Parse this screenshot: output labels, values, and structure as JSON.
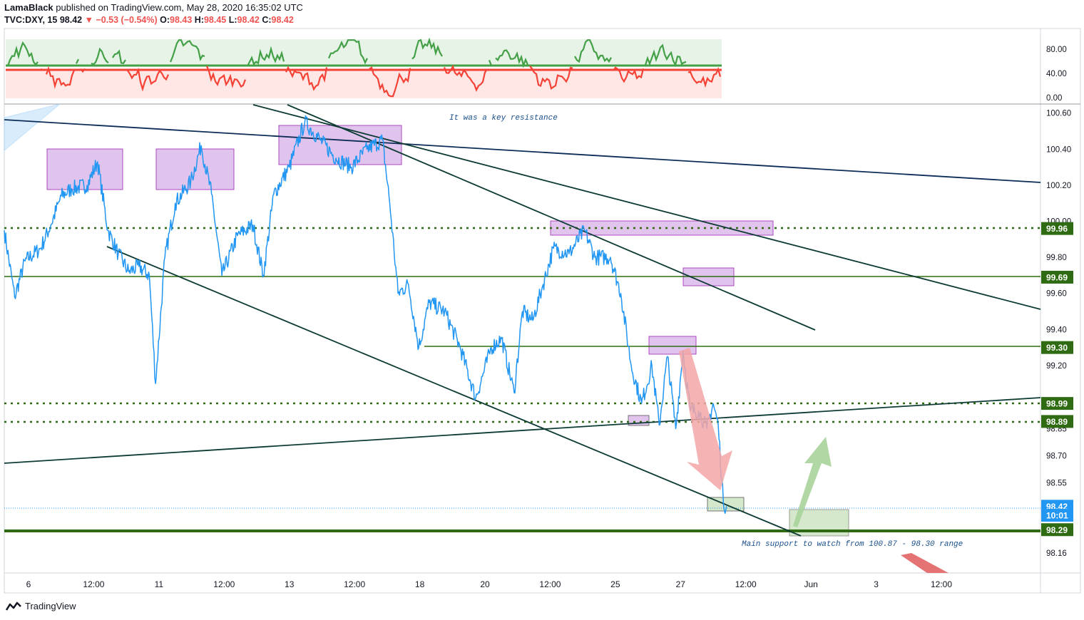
{
  "header": {
    "author": "LamaBlack",
    "published": "published on TradingView.com, May 28, 2020 16:35:02 UTC",
    "symbol": "TVC:DXY, 15",
    "last": "98.42",
    "change": "−0.53 (−0.54%)",
    "o_label": "O:",
    "o_value": "98.43",
    "h_label": "H:",
    "h_value": "98.45",
    "l_label": "L:",
    "l_value": "98.42",
    "c_label": "C:",
    "c_value": "98.42"
  },
  "footer": {
    "brand": "TradingView"
  },
  "colors": {
    "price": "#2196f3",
    "trendline": "#0d3b34",
    "resistance_blue": "#0c2d57",
    "support_green": "#2e6b12",
    "dotted_green": "#2e6b12",
    "box_purple": "#e1c4ed",
    "box_green": "#d5e8cc",
    "arrow_red": "#f4a6a6",
    "arrow_green": "#a9d39a",
    "indicator_green": "#43a047",
    "indicator_red": "#f44336"
  },
  "chart_data": {
    "type": "line",
    "symbol": "TVC:DXY",
    "interval": "15",
    "ylim": [
      98.05,
      100.65
    ],
    "yticks": [
      "100.60",
      "100.40",
      "100.20",
      "100.00",
      "99.80",
      "99.60",
      "99.40",
      "99.20",
      "98.85",
      "98.70",
      "98.55",
      "98.16"
    ],
    "xticks": [
      "6",
      "12:00",
      "11",
      "12:00",
      "13",
      "12:00",
      "18",
      "20",
      "12:00",
      "25",
      "27",
      "12:00",
      "Jun",
      "3",
      "12:00"
    ],
    "price_labels": [
      {
        "text": "99.96",
        "value": 99.96,
        "color": "#2e6b12"
      },
      {
        "text": "99.69",
        "value": 99.69,
        "color": "#2e6b12"
      },
      {
        "text": "99.30",
        "value": 99.3,
        "color": "#2e6b12"
      },
      {
        "text": "98.99",
        "value": 98.99,
        "color": "#2e6b12"
      },
      {
        "text": "98.89",
        "value": 98.89,
        "color": "#2e6b12"
      },
      {
        "text": "98.42",
        "value": 98.42,
        "color": "#2196f3"
      },
      {
        "text": "10:01",
        "value": 98.37,
        "color": "#2196f3"
      },
      {
        "text": "98.29",
        "value": 98.29,
        "color": "#2e6b12"
      }
    ],
    "horizontal_levels": [
      {
        "value": 99.96,
        "style": "dotted"
      },
      {
        "value": 99.69,
        "style": "solid"
      },
      {
        "value": 99.3,
        "style": "solid"
      },
      {
        "value": 98.99,
        "style": "dotted"
      },
      {
        "value": 98.89,
        "style": "dotted"
      },
      {
        "value": 98.29,
        "style": "solid-thick"
      }
    ],
    "price_series": [
      {
        "x": 0,
        "y": 99.95
      },
      {
        "x": 0.01,
        "y": 99.58
      },
      {
        "x": 0.02,
        "y": 99.78
      },
      {
        "x": 0.035,
        "y": 99.85
      },
      {
        "x": 0.045,
        "y": 99.98
      },
      {
        "x": 0.055,
        "y": 100.14
      },
      {
        "x": 0.065,
        "y": 100.18
      },
      {
        "x": 0.08,
        "y": 100.2
      },
      {
        "x": 0.09,
        "y": 100.33
      },
      {
        "x": 0.1,
        "y": 99.95
      },
      {
        "x": 0.11,
        "y": 99.82
      },
      {
        "x": 0.12,
        "y": 99.72
      },
      {
        "x": 0.13,
        "y": 99.75
      },
      {
        "x": 0.14,
        "y": 99.7
      },
      {
        "x": 0.146,
        "y": 99.1
      },
      {
        "x": 0.155,
        "y": 99.8
      },
      {
        "x": 0.165,
        "y": 100.1
      },
      {
        "x": 0.18,
        "y": 100.22
      },
      {
        "x": 0.19,
        "y": 100.42
      },
      {
        "x": 0.2,
        "y": 100.15
      },
      {
        "x": 0.21,
        "y": 99.7
      },
      {
        "x": 0.225,
        "y": 99.92
      },
      {
        "x": 0.24,
        "y": 99.98
      },
      {
        "x": 0.25,
        "y": 99.7
      },
      {
        "x": 0.26,
        "y": 100.15
      },
      {
        "x": 0.275,
        "y": 100.3
      },
      {
        "x": 0.29,
        "y": 100.55
      },
      {
        "x": 0.305,
        "y": 100.45
      },
      {
        "x": 0.32,
        "y": 100.35
      },
      {
        "x": 0.335,
        "y": 100.3
      },
      {
        "x": 0.35,
        "y": 100.4
      },
      {
        "x": 0.365,
        "y": 100.45
      },
      {
        "x": 0.372,
        "y": 100.1
      },
      {
        "x": 0.38,
        "y": 99.6
      },
      {
        "x": 0.39,
        "y": 99.65
      },
      {
        "x": 0.4,
        "y": 99.3
      },
      {
        "x": 0.41,
        "y": 99.55
      },
      {
        "x": 0.425,
        "y": 99.5
      },
      {
        "x": 0.44,
        "y": 99.3
      },
      {
        "x": 0.455,
        "y": 99.02
      },
      {
        "x": 0.47,
        "y": 99.3
      },
      {
        "x": 0.48,
        "y": 99.35
      },
      {
        "x": 0.492,
        "y": 99.05
      },
      {
        "x": 0.5,
        "y": 99.5
      },
      {
        "x": 0.51,
        "y": 99.45
      },
      {
        "x": 0.52,
        "y": 99.65
      },
      {
        "x": 0.53,
        "y": 99.85
      },
      {
        "x": 0.545,
        "y": 99.82
      },
      {
        "x": 0.56,
        "y": 99.95
      },
      {
        "x": 0.57,
        "y": 99.8
      },
      {
        "x": 0.585,
        "y": 99.8
      },
      {
        "x": 0.595,
        "y": 99.6
      },
      {
        "x": 0.605,
        "y": 99.2
      },
      {
        "x": 0.615,
        "y": 98.99
      },
      {
        "x": 0.625,
        "y": 99.2
      },
      {
        "x": 0.632,
        "y": 98.87
      },
      {
        "x": 0.64,
        "y": 99.25
      },
      {
        "x": 0.648,
        "y": 98.85
      },
      {
        "x": 0.655,
        "y": 99.28
      },
      {
        "x": 0.662,
        "y": 98.95
      },
      {
        "x": 0.67,
        "y": 98.95
      },
      {
        "x": 0.678,
        "y": 98.85
      },
      {
        "x": 0.684,
        "y": 98.99
      },
      {
        "x": 0.689,
        "y": 98.87
      },
      {
        "x": 0.694,
        "y": 98.43
      },
      {
        "x": 0.697,
        "y": 98.42
      }
    ],
    "annotations": [
      {
        "text": "It was a key resistance"
      },
      {
        "text": "Main support to watch from 100.87 - 98.30 range"
      }
    ],
    "indicator": {
      "yticks": [
        "80.00",
        "40.00",
        "0.00"
      ],
      "ylim": [
        -5,
        100
      ],
      "overbought": 55,
      "oversold": 48
    }
  }
}
